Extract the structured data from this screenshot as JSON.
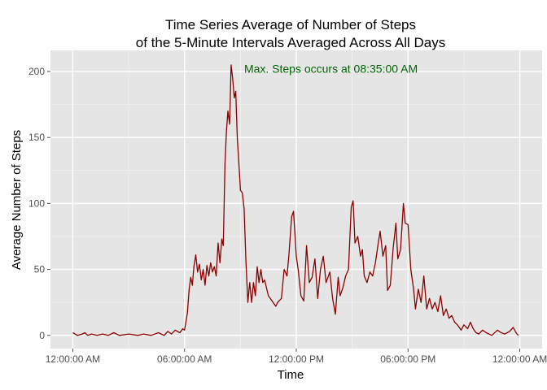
{
  "chart_data": {
    "type": "line",
    "title_lines": [
      "Time Series Average of Number of Steps",
      "of the 5-Minute Intervals Averaged Across All Days"
    ],
    "xlabel": "Time",
    "ylabel": "Average Number of Steps",
    "x_ticks": [
      "12:00:00 AM",
      "06:00:00 AM",
      "12:00:00 PM",
      "06:00:00 PM",
      "12:00:00 AM"
    ],
    "x_tick_hours": [
      0,
      6,
      12,
      18,
      24
    ],
    "y_ticks": [
      0,
      50,
      100,
      150,
      200
    ],
    "xlim_hours": [
      -1.2,
      25.2
    ],
    "ylim": [
      -10,
      216
    ],
    "grid": true,
    "annotation": {
      "text": "Max. Steps occurs at 08:35:00 AM",
      "x_hour": 9.2,
      "y": 199
    },
    "colors": {
      "line": "#8b0000",
      "annotation": "#006400",
      "panel": "#e5e5e5",
      "grid_major": "#ffffff",
      "grid_minor": "#f2f2f2"
    },
    "series": [
      {
        "points": [
          [
            0.0,
            2
          ],
          [
            0.25,
            0
          ],
          [
            0.5,
            1
          ],
          [
            0.65,
            2
          ],
          [
            0.8,
            0
          ],
          [
            1.0,
            1
          ],
          [
            1.3,
            0
          ],
          [
            1.6,
            1
          ],
          [
            1.9,
            0
          ],
          [
            2.2,
            2
          ],
          [
            2.5,
            0
          ],
          [
            3.0,
            1
          ],
          [
            3.5,
            0
          ],
          [
            3.8,
            1
          ],
          [
            4.2,
            0
          ],
          [
            4.6,
            2
          ],
          [
            4.9,
            0
          ],
          [
            5.1,
            3
          ],
          [
            5.3,
            1
          ],
          [
            5.5,
            4
          ],
          [
            5.75,
            2
          ],
          [
            5.9,
            5
          ],
          [
            6.0,
            4
          ],
          [
            6.15,
            17
          ],
          [
            6.25,
            35
          ],
          [
            6.33,
            44
          ],
          [
            6.42,
            38
          ],
          [
            6.5,
            52
          ],
          [
            6.6,
            61
          ],
          [
            6.7,
            48
          ],
          [
            6.8,
            54
          ],
          [
            6.9,
            42
          ],
          [
            7.0,
            50
          ],
          [
            7.1,
            38
          ],
          [
            7.2,
            53
          ],
          [
            7.3,
            45
          ],
          [
            7.4,
            55
          ],
          [
            7.5,
            48
          ],
          [
            7.6,
            52
          ],
          [
            7.7,
            45
          ],
          [
            7.8,
            70
          ],
          [
            7.9,
            55
          ],
          [
            8.0,
            73
          ],
          [
            8.08,
            68
          ],
          [
            8.17,
            130
          ],
          [
            8.25,
            155
          ],
          [
            8.33,
            170
          ],
          [
            8.42,
            160
          ],
          [
            8.5,
            205
          ],
          [
            8.58,
            195
          ],
          [
            8.67,
            180
          ],
          [
            8.75,
            185
          ],
          [
            8.83,
            150
          ],
          [
            8.92,
            130
          ],
          [
            9.0,
            110
          ],
          [
            9.1,
            108
          ],
          [
            9.2,
            96
          ],
          [
            9.3,
            55
          ],
          [
            9.4,
            25
          ],
          [
            9.5,
            40
          ],
          [
            9.6,
            25
          ],
          [
            9.7,
            40
          ],
          [
            9.8,
            30
          ],
          [
            9.9,
            52
          ],
          [
            10.0,
            40
          ],
          [
            10.1,
            50
          ],
          [
            10.2,
            40
          ],
          [
            10.3,
            42
          ],
          [
            10.5,
            30
          ],
          [
            10.7,
            26
          ],
          [
            10.9,
            22
          ],
          [
            11.0,
            25
          ],
          [
            11.2,
            28
          ],
          [
            11.35,
            50
          ],
          [
            11.5,
            45
          ],
          [
            11.6,
            60
          ],
          [
            11.75,
            90
          ],
          [
            11.85,
            94
          ],
          [
            12.0,
            60
          ],
          [
            12.1,
            50
          ],
          [
            12.25,
            30
          ],
          [
            12.4,
            26
          ],
          [
            12.55,
            68
          ],
          [
            12.7,
            40
          ],
          [
            12.85,
            44
          ],
          [
            13.0,
            58
          ],
          [
            13.15,
            28
          ],
          [
            13.3,
            50
          ],
          [
            13.45,
            60
          ],
          [
            13.6,
            40
          ],
          [
            13.8,
            48
          ],
          [
            13.95,
            28
          ],
          [
            14.1,
            16
          ],
          [
            14.25,
            44
          ],
          [
            14.35,
            30
          ],
          [
            14.5,
            36
          ],
          [
            14.65,
            45
          ],
          [
            14.8,
            50
          ],
          [
            14.95,
            97
          ],
          [
            15.05,
            102
          ],
          [
            15.15,
            70
          ],
          [
            15.3,
            75
          ],
          [
            15.45,
            60
          ],
          [
            15.55,
            65
          ],
          [
            15.65,
            45
          ],
          [
            15.8,
            40
          ],
          [
            15.95,
            48
          ],
          [
            16.1,
            45
          ],
          [
            16.25,
            55
          ],
          [
            16.4,
            70
          ],
          [
            16.5,
            79
          ],
          [
            16.65,
            60
          ],
          [
            16.8,
            68
          ],
          [
            16.9,
            34
          ],
          [
            17.05,
            38
          ],
          [
            17.2,
            66
          ],
          [
            17.35,
            85
          ],
          [
            17.45,
            58
          ],
          [
            17.6,
            65
          ],
          [
            17.75,
            100
          ],
          [
            17.85,
            85
          ],
          [
            18.0,
            84
          ],
          [
            18.15,
            50
          ],
          [
            18.3,
            35
          ],
          [
            18.4,
            20
          ],
          [
            18.55,
            35
          ],
          [
            18.7,
            25
          ],
          [
            18.85,
            45
          ],
          [
            19.0,
            20
          ],
          [
            19.15,
            28
          ],
          [
            19.3,
            20
          ],
          [
            19.45,
            25
          ],
          [
            19.6,
            18
          ],
          [
            19.75,
            30
          ],
          [
            19.9,
            15
          ],
          [
            20.05,
            20
          ],
          [
            20.2,
            13
          ],
          [
            20.35,
            15
          ],
          [
            20.5,
            10
          ],
          [
            20.65,
            8
          ],
          [
            20.85,
            4
          ],
          [
            21.0,
            8
          ],
          [
            21.2,
            5
          ],
          [
            21.35,
            10
          ],
          [
            21.5,
            5
          ],
          [
            21.65,
            2
          ],
          [
            21.8,
            1
          ],
          [
            22.0,
            4
          ],
          [
            22.2,
            2
          ],
          [
            22.5,
            0
          ],
          [
            22.8,
            4
          ],
          [
            23.0,
            2
          ],
          [
            23.2,
            1
          ],
          [
            23.45,
            3
          ],
          [
            23.65,
            6
          ],
          [
            23.8,
            2
          ],
          [
            23.92,
            0
          ]
        ]
      }
    ]
  }
}
